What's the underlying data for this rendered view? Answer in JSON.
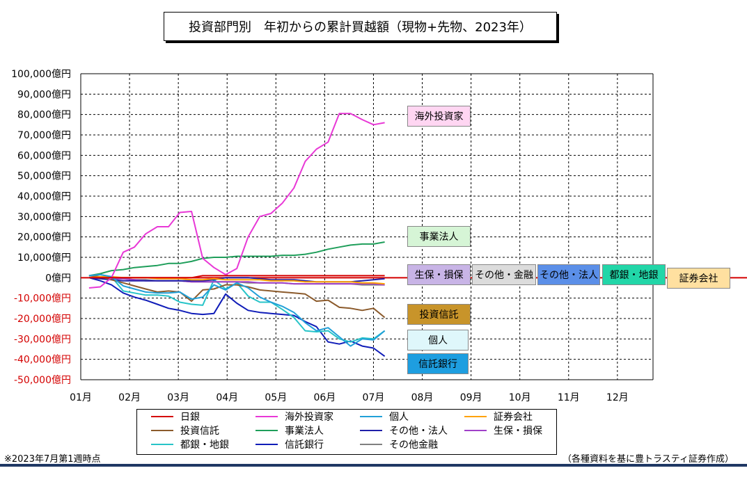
{
  "title": "投資部門別　年初からの累計買越額（現物+先物、2023年）",
  "note_left": "※2023年7月第1週時点",
  "note_right": "（各種資料を基に豊トラスティ証券作成）",
  "colors": {
    "negative_tick": "#d40000",
    "positive_tick": "#000000",
    "zero_line": "#d40000",
    "grid": "#000000"
  },
  "chart_data": {
    "type": "line",
    "x_ticks": [
      "01月",
      "02月",
      "03月",
      "04月",
      "05月",
      "06月",
      "07月",
      "08月",
      "09月",
      "10月",
      "11月",
      "12月"
    ],
    "y_ticks": [
      "100,000億円",
      "90,000億円",
      "80,000億円",
      "70,000億円",
      "60,000億円",
      "50,000億円",
      "40,000億円",
      "30,000億円",
      "20,000億円",
      "10,000億円",
      "0億円",
      "-10,000億円",
      "-20,000億円",
      "-30,000億円",
      "-40,000億円",
      "-50,000億円"
    ],
    "ylim": [
      -50000,
      100000
    ],
    "xlim": [
      1,
      12.73
    ],
    "grid": true,
    "x": [
      1.17,
      1.4,
      1.63,
      1.87,
      2.1,
      2.33,
      2.57,
      2.8,
      3.03,
      3.27,
      3.5,
      3.73,
      3.97,
      4.2,
      4.43,
      4.67,
      4.9,
      5.13,
      5.37,
      5.6,
      5.83,
      6.07,
      6.3,
      6.53,
      6.77,
      7.0,
      7.23
    ],
    "series": [
      {
        "name": "日銀",
        "color": "#d40000",
        "values": [
          0,
          0,
          0,
          0,
          0,
          0,
          0,
          0,
          0,
          0,
          1000,
          1000,
          1000,
          1000,
          1000,
          1000,
          1000,
          1000,
          1000,
          1000,
          1000,
          1000,
          1000,
          1000,
          1000,
          1000,
          1000
        ]
      },
      {
        "name": "海外投資家",
        "color": "#e838d6",
        "values": [
          -5000,
          -4500,
          0,
          12500,
          15000,
          21500,
          25000,
          25000,
          32000,
          32500,
          9500,
          5000,
          1500,
          4500,
          20000,
          30000,
          31500,
          36500,
          44000,
          57000,
          63000,
          66500,
          80500,
          80500,
          77500,
          75000,
          76000
        ]
      },
      {
        "name": "個人",
        "color": "#21a0d8",
        "values": [
          1000,
          1500,
          500,
          -4000,
          -5500,
          -7000,
          -7500,
          -7500,
          -7000,
          -10500,
          -9500,
          -3500,
          -6000,
          -2500,
          -5000,
          -9500,
          -12000,
          -14000,
          -17000,
          -22000,
          -26000,
          -24500,
          -29000,
          -33500,
          -30000,
          -30500,
          -26000
        ]
      },
      {
        "name": "証券会社",
        "color": "#ffa200",
        "values": [
          0,
          500,
          500,
          0,
          0,
          0,
          -500,
          -500,
          -500,
          -1000,
          -1000,
          -500,
          -1000,
          -1000,
          -1000,
          -1000,
          -1500,
          -1500,
          -1500,
          -2000,
          -2000,
          -2000,
          -2000,
          -2000,
          -2500,
          -2500,
          -3000
        ]
      },
      {
        "name": "投資信託",
        "color": "#8b5a2b",
        "values": [
          1000,
          500,
          -1000,
          -2500,
          -4000,
          -5500,
          -7000,
          -6500,
          -7000,
          -11500,
          -6000,
          -5500,
          -3500,
          -3500,
          -4500,
          -6000,
          -6500,
          -7000,
          -7500,
          -8000,
          -11500,
          -11000,
          -14500,
          -15000,
          -16000,
          -15000,
          -19500
        ]
      },
      {
        "name": "事業法人",
        "color": "#1e9e5a",
        "values": [
          1000,
          2000,
          3500,
          4000,
          5000,
          5500,
          6000,
          7000,
          7000,
          8000,
          9500,
          10000,
          10000,
          10500,
          10500,
          10500,
          10500,
          11000,
          11000,
          11500,
          12500,
          14000,
          15000,
          16000,
          16500,
          16500,
          17500
        ]
      },
      {
        "name": "その他・法人",
        "color": "#1f1fa8",
        "values": [
          0,
          -500,
          -1000,
          -1500,
          -1500,
          -1500,
          -1500,
          -1500,
          -1500,
          -1500,
          -1500,
          -1000,
          0,
          0,
          0,
          -500,
          -1000,
          -1000,
          -1000,
          -1500,
          -2000,
          -2000,
          -2000,
          -2000,
          -1500,
          -1000,
          -500
        ]
      },
      {
        "name": "生保・損保",
        "color": "#a040c8",
        "values": [
          0,
          0,
          -500,
          -500,
          -1000,
          -1500,
          -1500,
          -1500,
          -1500,
          -2000,
          -2000,
          -2000,
          -2000,
          -2000,
          -2000,
          -2500,
          -2500,
          -2500,
          -3000,
          -3000,
          -3000,
          -3000,
          -3000,
          -3000,
          -3000,
          -3000,
          -3500
        ]
      },
      {
        "name": "都銀・地銀",
        "color": "#27c4c8",
        "values": [
          1000,
          1500,
          500,
          -6500,
          -7500,
          -8500,
          -8500,
          -9000,
          -12000,
          -13000,
          -13500,
          -1000,
          -5500,
          -2500,
          -9000,
          -12000,
          -12000,
          -15500,
          -19500,
          -26000,
          -26500,
          -26000,
          -30000,
          -31500,
          -29500,
          -30000,
          -26000
        ]
      },
      {
        "name": "信託銀行",
        "color": "#0f1cb8",
        "values": [
          0,
          -1500,
          -3500,
          -7500,
          -9500,
          -11000,
          -13000,
          -15000,
          -16000,
          -17500,
          -18000,
          -17500,
          -8000,
          -12500,
          -16000,
          -17000,
          -17500,
          -18000,
          -18500,
          -21500,
          -24000,
          -31500,
          -32500,
          -31000,
          -33500,
          -34500,
          -38500
        ]
      },
      {
        "name": "その他金融",
        "color": "#7f7f7f",
        "values": [
          0,
          0,
          -500,
          -500,
          -1000,
          -1000,
          -1500,
          -1500,
          -1500,
          -2000,
          -2000,
          -2000,
          -2000,
          -2000,
          -2500,
          -2500,
          -2500,
          -2500,
          -3000,
          -3000,
          -3000,
          -3000,
          -3000,
          -3000,
          -3500,
          -3500,
          -3500
        ]
      }
    ],
    "annotations": [
      {
        "text": "海外投資家",
        "bg": "#ffd6f2"
      },
      {
        "text": "事業法人",
        "bg": "#d6f5d6"
      },
      {
        "text": "生保・損保",
        "bg": "#c8b4e6"
      },
      {
        "text": "その他・金融",
        "bg": "#dcdcdc"
      },
      {
        "text": "その他・法人",
        "bg": "#5b8fe8"
      },
      {
        "text": "都銀・地銀",
        "bg": "#22d6a8"
      },
      {
        "text": "証券会社",
        "bg": "#ffe0a0"
      },
      {
        "text": "投資信託",
        "bg": "#c8942a"
      },
      {
        "text": "個人",
        "bg": "#dff7fb"
      },
      {
        "text": "信託銀行",
        "bg": "#1e9ee0"
      }
    ],
    "legend": {
      "position": "bottom",
      "items": [
        {
          "text": "日銀",
          "color": "#d40000"
        },
        {
          "text": "海外投資家",
          "color": "#e838d6"
        },
        {
          "text": "個人",
          "color": "#21a0d8"
        },
        {
          "text": "証券会社",
          "color": "#ffa200"
        },
        {
          "text": "投資信託",
          "color": "#8b5a2b"
        },
        {
          "text": "事業法人",
          "color": "#1e9e5a"
        },
        {
          "text": "その他・法人",
          "color": "#1f1fa8"
        },
        {
          "text": "生保・損保",
          "color": "#a040c8"
        },
        {
          "text": "都銀・地銀",
          "color": "#27c4c8"
        },
        {
          "text": "信託銀行",
          "color": "#0f1cb8"
        },
        {
          "text": "その他金融",
          "color": "#7f7f7f"
        }
      ]
    }
  }
}
